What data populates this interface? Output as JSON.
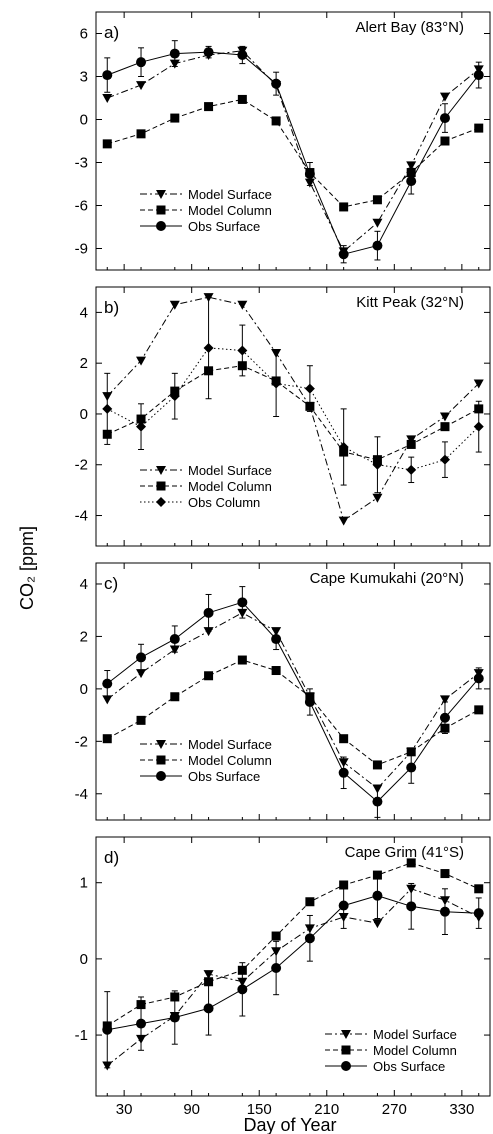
{
  "ylabel": "CO₂ [ppm]",
  "xlabel": "Day of Year",
  "xticks": [
    30,
    90,
    150,
    210,
    270,
    330
  ],
  "xlim": [
    5,
    355
  ],
  "chart_data": [
    {
      "type": "line",
      "panel": "a)",
      "title": "Alert Bay (83°N)",
      "ylim": [
        -10.5,
        7.5
      ],
      "yticks": [
        6,
        3,
        0,
        -3,
        -6,
        -9
      ],
      "legend": "lower-left",
      "series": [
        {
          "name": "Model Surface",
          "marker": "triangle-down",
          "dash": "dashdot",
          "x": [
            15,
            45,
            75,
            105,
            135,
            165,
            195,
            225,
            255,
            285,
            315,
            345
          ],
          "y": [
            1.5,
            2.4,
            3.9,
            4.5,
            4.8,
            2.4,
            -4.4,
            -9.2,
            -7.2,
            -3.2,
            1.6,
            3.5
          ]
        },
        {
          "name": "Model Column",
          "marker": "square",
          "dash": "dashed",
          "x": [
            15,
            45,
            75,
            105,
            135,
            165,
            195,
            225,
            255,
            285,
            315,
            345
          ],
          "y": [
            -1.7,
            -1.0,
            0.1,
            0.9,
            1.4,
            -0.1,
            -3.7,
            -6.1,
            -5.6,
            -3.7,
            -1.5,
            -0.6
          ]
        },
        {
          "name": "Obs Surface",
          "marker": "circle",
          "dash": "solid",
          "x": [
            15,
            45,
            75,
            105,
            135,
            165,
            195,
            225,
            255,
            285,
            315,
            345
          ],
          "y": [
            3.1,
            4.0,
            4.6,
            4.7,
            4.5,
            2.5,
            -3.8,
            -9.4,
            -8.8,
            -4.3,
            0.1,
            3.1
          ],
          "err": [
            1.2,
            1.0,
            0.9,
            0.4,
            0.6,
            0.8,
            0.8,
            0.6,
            1.0,
            0.9,
            1.0,
            0.9
          ]
        }
      ]
    },
    {
      "type": "line",
      "panel": "b)",
      "title": "Kitt Peak (32°N)",
      "ylim": [
        -5.2,
        5.0
      ],
      "yticks": [
        4,
        2,
        0,
        -2,
        -4
      ],
      "legend": "lower-left",
      "series": [
        {
          "name": "Model Surface",
          "marker": "triangle-down",
          "dash": "dashdot",
          "x": [
            15,
            45,
            75,
            105,
            135,
            165,
            195,
            225,
            255,
            285,
            315,
            345
          ],
          "y": [
            0.7,
            2.1,
            4.3,
            4.6,
            4.3,
            2.4,
            0.3,
            -4.2,
            -3.3,
            -1.0,
            -0.1,
            1.2
          ]
        },
        {
          "name": "Model Column",
          "marker": "square",
          "dash": "dashed",
          "x": [
            15,
            45,
            75,
            105,
            135,
            165,
            195,
            225,
            255,
            285,
            315,
            345
          ],
          "y": [
            -0.8,
            -0.2,
            0.9,
            1.7,
            1.9,
            1.3,
            0.3,
            -1.5,
            -1.8,
            -1.2,
            -0.5,
            0.2
          ]
        },
        {
          "name": "Obs Column",
          "marker": "diamond",
          "dash": "dotted",
          "x": [
            15,
            45,
            75,
            105,
            135,
            165,
            195,
            225,
            255,
            285,
            315,
            345
          ],
          "y": [
            0.2,
            -0.5,
            0.7,
            2.6,
            2.5,
            1.2,
            1.0,
            -1.3,
            -2.0,
            -2.2,
            -1.8,
            -0.5
          ],
          "err": [
            1.4,
            0.9,
            0.9,
            2.0,
            1.0,
            1.3,
            0.9,
            1.5,
            1.1,
            0.5,
            0.7,
            1.0
          ]
        }
      ]
    },
    {
      "type": "line",
      "panel": "c)",
      "title": "Cape Kumukahi (20°N)",
      "ylim": [
        -5.0,
        4.8
      ],
      "yticks": [
        4,
        2,
        0,
        -2,
        -4
      ],
      "legend": "lower-left",
      "series": [
        {
          "name": "Model Surface",
          "marker": "triangle-down",
          "dash": "dashdot",
          "x": [
            15,
            45,
            75,
            105,
            135,
            165,
            195,
            225,
            255,
            285,
            315,
            345
          ],
          "y": [
            -0.4,
            0.6,
            1.5,
            2.2,
            2.9,
            2.2,
            -0.3,
            -2.8,
            -3.8,
            -2.4,
            -0.4,
            0.6
          ]
        },
        {
          "name": "Model Column",
          "marker": "square",
          "dash": "dashed",
          "x": [
            15,
            45,
            75,
            105,
            135,
            165,
            195,
            225,
            255,
            285,
            315,
            345
          ],
          "y": [
            -1.9,
            -1.2,
            -0.3,
            0.5,
            1.1,
            0.7,
            -0.3,
            -1.9,
            -2.9,
            -2.4,
            -1.5,
            -0.8
          ]
        },
        {
          "name": "Obs Surface",
          "marker": "circle",
          "dash": "solid",
          "x": [
            15,
            45,
            75,
            105,
            135,
            165,
            195,
            225,
            255,
            285,
            315,
            345
          ],
          "y": [
            0.2,
            1.2,
            1.9,
            2.9,
            3.3,
            1.9,
            -0.5,
            -3.2,
            -4.3,
            -3.0,
            -1.1,
            0.4
          ],
          "err": [
            0.5,
            0.5,
            0.5,
            0.7,
            0.6,
            0.4,
            0.5,
            0.6,
            0.6,
            0.6,
            0.6,
            0.4
          ]
        }
      ]
    },
    {
      "type": "line",
      "panel": "d)",
      "title": "Cape Grim (41°S)",
      "ylim": [
        -1.8,
        1.6
      ],
      "yticks": [
        1,
        0,
        -1
      ],
      "legend": "lower-right",
      "series": [
        {
          "name": "Model Surface",
          "marker": "triangle-down",
          "dash": "dashdot",
          "x": [
            15,
            45,
            75,
            105,
            135,
            165,
            195,
            225,
            255,
            285,
            315,
            345
          ],
          "y": [
            -1.4,
            -1.05,
            -0.75,
            -0.2,
            -0.3,
            0.1,
            0.4,
            0.55,
            0.47,
            0.92,
            0.77,
            0.55
          ]
        },
        {
          "name": "Model Column",
          "marker": "square",
          "dash": "dashed",
          "x": [
            15,
            45,
            75,
            105,
            135,
            165,
            195,
            225,
            255,
            285,
            315,
            345
          ],
          "y": [
            -0.88,
            -0.6,
            -0.5,
            -0.3,
            -0.15,
            0.3,
            0.75,
            0.97,
            1.1,
            1.26,
            1.12,
            0.92
          ]
        },
        {
          "name": "Obs Surface",
          "marker": "circle",
          "dash": "solid",
          "x": [
            15,
            45,
            75,
            105,
            135,
            165,
            195,
            225,
            255,
            285,
            315,
            345
          ],
          "y": [
            -0.93,
            -0.85,
            -0.77,
            -0.65,
            -0.4,
            -0.12,
            0.27,
            0.7,
            0.83,
            0.69,
            0.62,
            0.6
          ],
          "err": [
            0.5,
            0.35,
            0.35,
            0.35,
            0.35,
            0.35,
            0.3,
            0.3,
            0.3,
            0.3,
            0.3,
            0.2
          ]
        }
      ]
    }
  ]
}
